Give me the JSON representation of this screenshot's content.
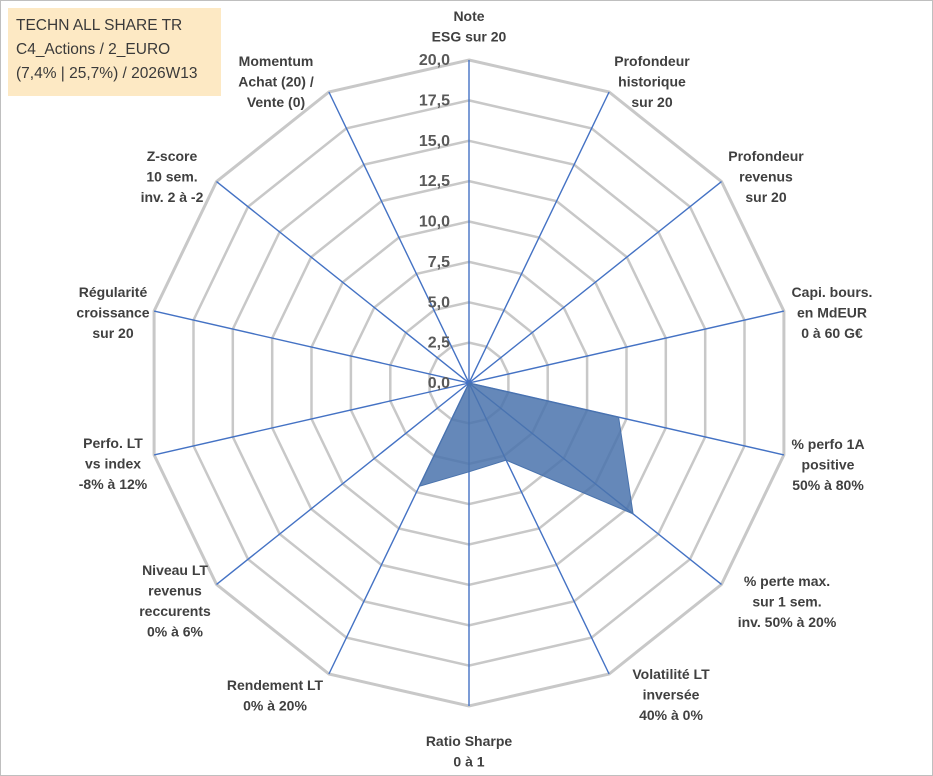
{
  "legend": {
    "line1": "TECHN ALL SHARE TR",
    "line2": "C4_Actions / 2_EURO",
    "line3": "(7,4% | 25,7%) / 2026W13"
  },
  "colors": {
    "grid": "#c8c8c8",
    "spoke": "#4472c4",
    "fill": "#4a73ad",
    "label": "#404040",
    "tick": "#595959",
    "legend_bg": "#fde9c4"
  },
  "chart_data": {
    "type": "radar",
    "title": "",
    "range": [
      0,
      20
    ],
    "ticks": [
      "0,0",
      "2,5",
      "5,0",
      "7,5",
      "10,0",
      "12,5",
      "15,0",
      "17,5",
      "20,0"
    ],
    "tick_step": 2.5,
    "categories": [
      [
        "Note",
        "ESG sur 20"
      ],
      [
        "Profondeur",
        "historique",
        "sur 20"
      ],
      [
        "Profondeur",
        "revenus",
        "sur 20"
      ],
      [
        "Capi. bours.",
        "en MdEUR",
        "0 à 60 G€"
      ],
      [
        "% perfo 1A",
        "positive",
        "50% à 80%"
      ],
      [
        "% perte max.",
        "sur 1 sem.",
        "inv. 50% à 20%"
      ],
      [
        "Volatilité LT",
        "inversée",
        "40% à 0%"
      ],
      [
        "Ratio Sharpe",
        "0 à 1"
      ],
      [
        "Rendement LT",
        "0% à 20%"
      ],
      [
        "Niveau LT",
        "revenus",
        "reccurents",
        "0% à 6%"
      ],
      [
        "Perfo. LT",
        "vs index",
        "-8% à 12%"
      ],
      [
        "Régularité",
        "croissance",
        "sur 20"
      ],
      [
        "Z-score",
        "10 sem.",
        "inv. 2 à -2"
      ],
      [
        "Momentum",
        "Achat (20) /",
        "Vente (0)"
      ]
    ],
    "series": [
      {
        "name": "TECHN ALL SHARE TR",
        "values": [
          0,
          0,
          0,
          0,
          9.5,
          13.0,
          5.3,
          5.5,
          7.1,
          0,
          0,
          0,
          0,
          0
        ]
      }
    ]
  }
}
